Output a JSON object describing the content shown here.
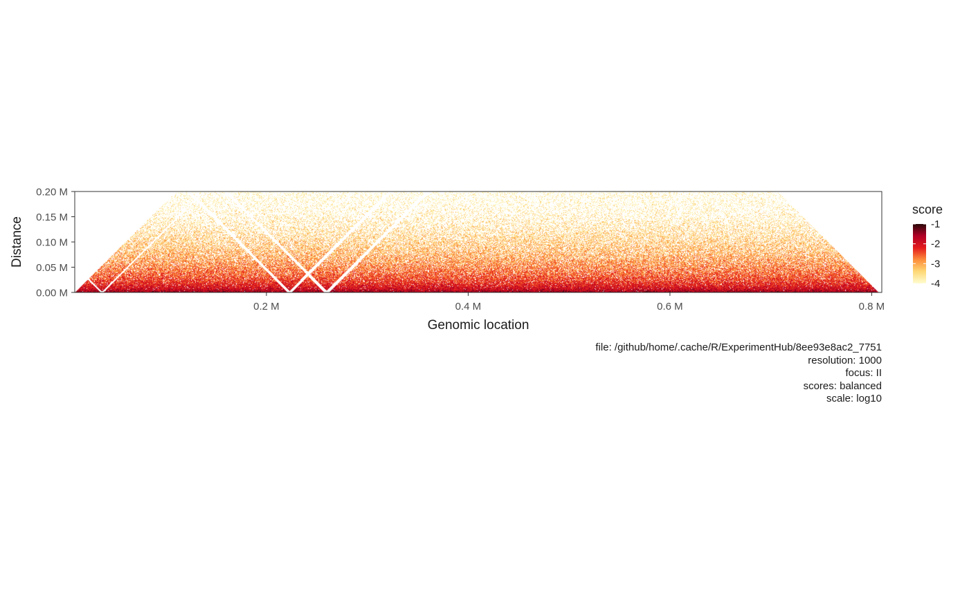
{
  "chart_data": {
    "type": "heatmap",
    "title": "",
    "xlabel": "Genomic location",
    "ylabel": "Distance",
    "xlim": [
      10000,
      810000
    ],
    "ylim": [
      0,
      200000
    ],
    "x_ticks": [
      {
        "value": 200000,
        "label": "0.2 M"
      },
      {
        "value": 400000,
        "label": "0.4 M"
      },
      {
        "value": 600000,
        "label": "0.6 M"
      },
      {
        "value": 800000,
        "label": "0.8 M"
      }
    ],
    "y_ticks": [
      {
        "value": 0,
        "label": "0.00 M"
      },
      {
        "value": 50000,
        "label": "0.05 M"
      },
      {
        "value": 100000,
        "label": "0.10 M"
      },
      {
        "value": 150000,
        "label": "0.15 M"
      },
      {
        "value": 200000,
        "label": "0.20 M"
      }
    ],
    "legend": {
      "title": "score",
      "position": "right",
      "range": [
        -4,
        -1
      ],
      "ticks": [
        -1,
        -2,
        -3,
        -4
      ],
      "colors": [
        "#fffcd0",
        "#fed976",
        "#fd8d3c",
        "#e31a1c",
        "#b10026",
        "#2b0a0a"
      ]
    },
    "region_start": 10000,
    "region_end": 807000,
    "resolution": 1000,
    "masked_bins": [
      {
        "start": 36000,
        "end": 38000
      },
      {
        "start": 221000,
        "end": 225000
      },
      {
        "start": 258000,
        "end": 262000
      }
    ],
    "grid": false
  },
  "caption": {
    "file": "file: /github/home/.cache/R/ExperimentHub/8ee93e8ac2_7751",
    "resolution": "resolution: 1000",
    "focus": "focus: II",
    "scores": "scores: balanced",
    "scale": "scale: log10"
  }
}
